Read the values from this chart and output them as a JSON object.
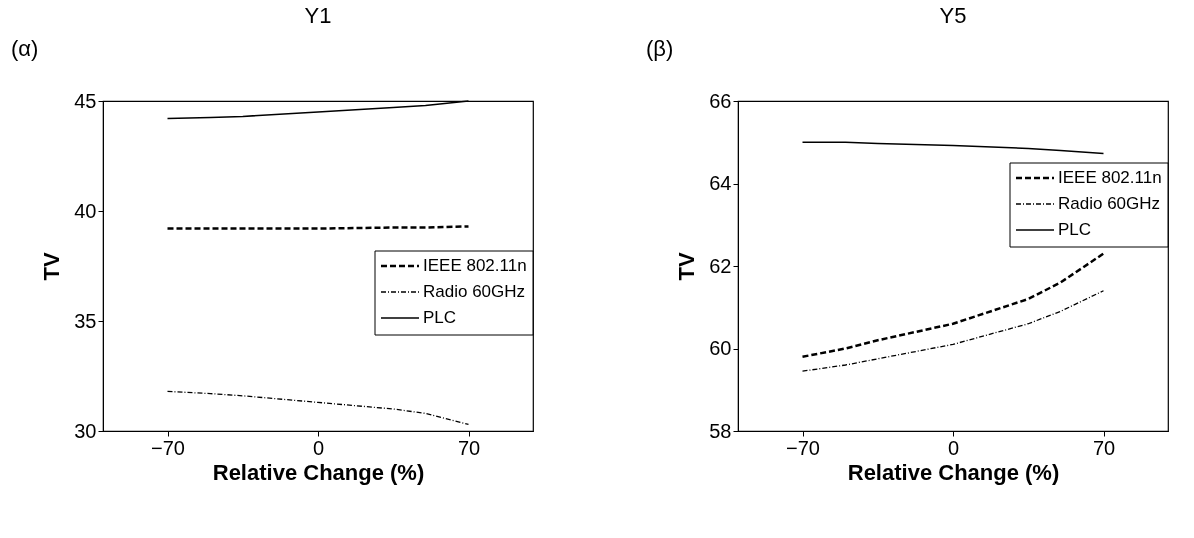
{
  "chart_data": [
    {
      "type": "line",
      "title": "Y1",
      "annotations": [
        "(α)"
      ],
      "xlabel": "Relative Change (%)",
      "ylabel": "TV",
      "x": [
        -70,
        -50,
        -35,
        0,
        35,
        50,
        70
      ],
      "xlim": [
        -100,
        100
      ],
      "xticks": [
        -70,
        0,
        70
      ],
      "ylim": [
        30,
        45
      ],
      "yticks": [
        30,
        35,
        40,
        45
      ],
      "grid": false,
      "legend": "right",
      "series": [
        {
          "name": "IEEE 802.11n",
          "color": "#000000",
          "line_style": "dashed",
          "values": [
            39.2,
            39.2,
            39.2,
            39.2,
            39.25,
            39.25,
            39.3
          ]
        },
        {
          "name": "Radio 60GHz",
          "color": "#000000",
          "line_style": "dashdot",
          "values": [
            31.8,
            31.7,
            31.6,
            31.3,
            31.0,
            30.8,
            30.3
          ]
        },
        {
          "name": "PLC",
          "color": "#000000",
          "line_style": "solid",
          "values": [
            44.2,
            44.25,
            44.3,
            44.5,
            44.7,
            44.8,
            45.0
          ]
        }
      ]
    },
    {
      "type": "line",
      "title": "Y5",
      "annotations": [
        "(β)"
      ],
      "xlabel": "Relative Change (%)",
      "ylabel": "TV",
      "x": [
        -70,
        -50,
        -35,
        0,
        35,
        50,
        70
      ],
      "xlim": [
        -100,
        100
      ],
      "xticks": [
        -70,
        0,
        70
      ],
      "ylim": [
        58,
        66
      ],
      "yticks": [
        58,
        60,
        62,
        64,
        66
      ],
      "grid": false,
      "legend": "top right",
      "series": [
        {
          "name": "IEEE 802.11n",
          "color": "#000000",
          "line_style": "dashed",
          "values": [
            59.8,
            60.0,
            60.2,
            60.6,
            61.2,
            61.6,
            62.3
          ]
        },
        {
          "name": "Radio 60GHz",
          "color": "#000000",
          "line_style": "dashdot",
          "values": [
            59.45,
            59.6,
            59.75,
            60.1,
            60.6,
            60.9,
            61.4
          ]
        },
        {
          "name": "PLC",
          "color": "#000000",
          "line_style": "solid",
          "values": [
            65.0,
            65.0,
            64.97,
            64.92,
            64.85,
            64.8,
            64.73
          ]
        }
      ]
    }
  ]
}
